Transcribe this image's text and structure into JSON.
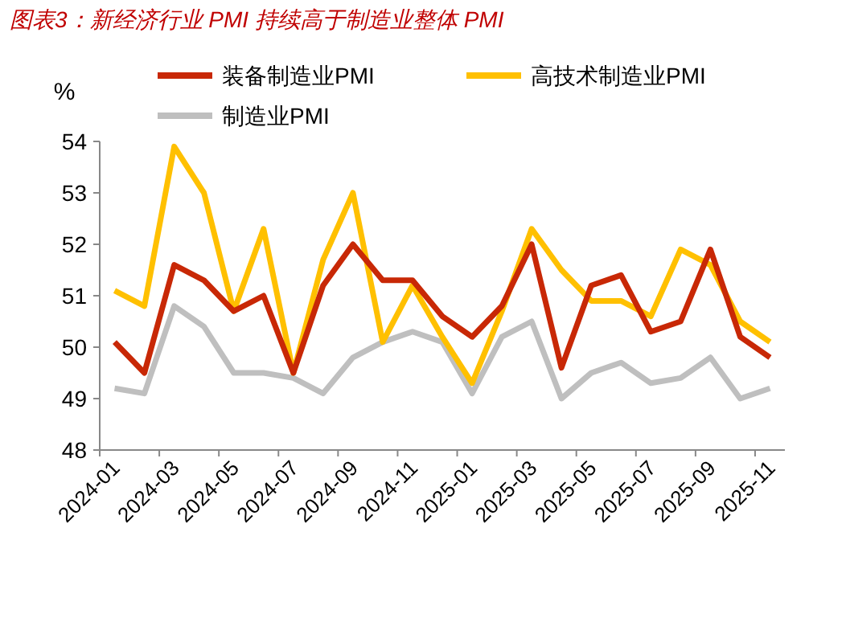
{
  "chart_data": {
    "type": "line",
    "title": "图表3：新经济行业 PMI 持续高于制造业整体 PMI",
    "ylabel": "%",
    "categories": [
      "2024-01",
      null,
      "2024-03",
      null,
      "2024-05",
      null,
      "2024-07",
      null,
      "2024-09",
      null,
      "2024-11",
      null,
      "2025-01",
      null,
      "2025-03",
      null,
      "2025-05",
      null,
      "2025-07",
      null,
      "2025-09",
      null,
      "2025-11"
    ],
    "series": [
      {
        "name": "装备制造业PMI",
        "color": "#c82806",
        "values": [
          50.1,
          49.5,
          51.6,
          51.3,
          50.7,
          51.0,
          49.5,
          51.2,
          52.0,
          51.3,
          51.3,
          50.6,
          50.2,
          50.8,
          52.0,
          49.6,
          51.2,
          51.4,
          50.3,
          50.5,
          51.9,
          50.2,
          49.8
        ]
      },
      {
        "name": "高技术制造业PMI",
        "color": "#ffc000",
        "values": [
          51.1,
          50.8,
          53.9,
          53.0,
          50.7,
          52.3,
          49.5,
          51.7,
          53.0,
          50.1,
          51.2,
          50.2,
          49.3,
          50.7,
          52.3,
          51.5,
          50.9,
          50.9,
          50.6,
          51.9,
          51.6,
          50.5,
          50.1
        ]
      },
      {
        "name": "制造业PMI",
        "color": "#bfbfbf",
        "values": [
          49.2,
          49.1,
          50.8,
          50.4,
          49.5,
          49.5,
          49.4,
          49.1,
          49.8,
          50.1,
          50.3,
          50.1,
          49.1,
          50.2,
          50.5,
          49.0,
          49.5,
          49.7,
          49.3,
          49.4,
          49.8,
          49.0,
          49.2
        ]
      }
    ],
    "ylim": [
      48,
      54
    ],
    "yticks": [
      48,
      49,
      50,
      51,
      52,
      53,
      54
    ],
    "legend": "top",
    "grid": false,
    "marker": "none",
    "line_style": "solid"
  }
}
